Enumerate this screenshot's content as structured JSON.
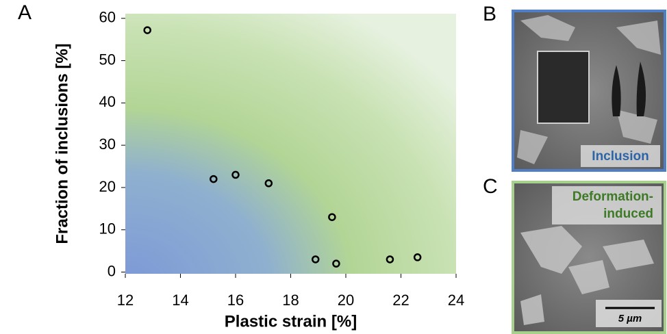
{
  "chart_data": {
    "type": "scatter",
    "xlabel": "Plastic strain [%]",
    "ylabel": "Fraction of inclusions [%]",
    "x": [
      12.8,
      15.2,
      16.0,
      17.2,
      19.5,
      18.9,
      19.65,
      21.6,
      22.6
    ],
    "values": [
      57.2,
      22.0,
      23.0,
      21.0,
      13.0,
      3.0,
      2.0,
      3.0,
      3.5
    ],
    "marker_color": "#000000",
    "xlim": [
      12,
      24
    ],
    "ylim": [
      -0.4,
      61.1
    ],
    "xticks": [
      12,
      14,
      16,
      18,
      20,
      22,
      24
    ],
    "yticks": [
      0,
      10,
      20,
      30,
      40,
      50,
      60
    ]
  },
  "panels": {
    "a": "A",
    "b": "B",
    "c": "C",
    "b_caption": "Inclusion",
    "c_caption_1": "Deformation-",
    "c_caption_2": "induced",
    "scale_bar": "5 µm"
  }
}
